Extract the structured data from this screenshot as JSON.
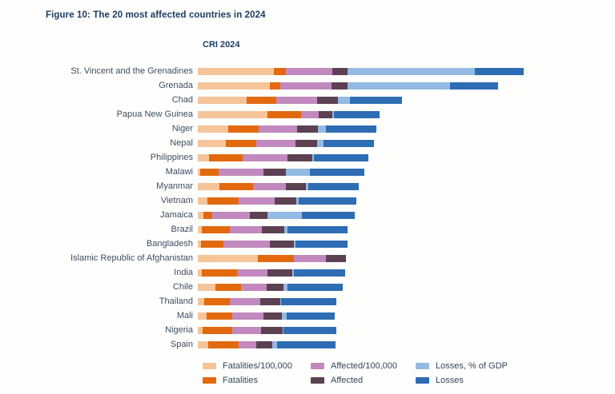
{
  "figure": {
    "title": "Figure 10: The 20 most affected countries in 2024"
  },
  "chart_data": {
    "type": "bar",
    "orientation": "horizontal",
    "stacked": true,
    "title": "CRI 2024",
    "xlabel": "",
    "ylabel": "",
    "value_units": "relative segment length (no numeric axis shown in figure)",
    "grid": false,
    "legend_position": "bottom",
    "categories": [
      "St. Vincent and the Grenadines",
      "Grenada",
      "Chad",
      "Papua New Guinea",
      "Niger",
      "Nepal",
      "Philippines",
      "Malawi",
      "Myanmar",
      "Vietnam",
      "Jamaica",
      "Brazil",
      "Bangladesh",
      "Islamic Republic of Afghanistan",
      "India",
      "Chile",
      "Thailand",
      "Mali",
      "Nigeria",
      "Spain"
    ],
    "series": [
      {
        "name": "Fatalities/100,000",
        "color": "#f6c499",
        "values": [
          95,
          90,
          61,
          87,
          38,
          35,
          14,
          3,
          27,
          12,
          7,
          5,
          4,
          75,
          5,
          22,
          8,
          11,
          6,
          13
        ]
      },
      {
        "name": "Fatalities",
        "color": "#e2690e",
        "values": [
          15,
          13,
          37,
          42,
          38,
          38,
          42,
          23,
          42,
          39,
          11,
          35,
          28,
          45,
          44,
          32,
          32,
          32,
          37,
          38
        ]
      },
      {
        "name": "Affected/100,000",
        "color": "#c189be",
        "values": [
          58,
          64,
          51,
          22,
          48,
          49,
          56,
          56,
          41,
          45,
          47,
          40,
          58,
          40,
          38,
          32,
          38,
          39,
          36,
          22
        ]
      },
      {
        "name": "Affected",
        "color": "#5c4152",
        "values": [
          19,
          20,
          26,
          17,
          26,
          27,
          31,
          28,
          25,
          27,
          22,
          28,
          30,
          25,
          31,
          21,
          25,
          23,
          27,
          20
        ]
      },
      {
        "name": "Losses, % of GDP",
        "color": "#93bae2",
        "values": [
          159,
          128,
          15,
          2,
          10,
          8,
          2,
          30,
          3,
          3,
          43,
          4,
          2,
          0,
          2,
          5,
          1,
          6,
          1,
          6
        ]
      },
      {
        "name": "Losses",
        "color": "#2e6db4",
        "values": [
          61,
          60,
          65,
          57,
          63,
          63,
          68,
          68,
          63,
          72,
          66,
          75,
          65,
          0,
          64,
          69,
          69,
          60,
          66,
          73
        ]
      }
    ],
    "colors": {
      "figure_title": "#1c3c64",
      "country_label": "#3c4d63",
      "legend_label": "#33475c",
      "background": "#fefefc"
    }
  }
}
